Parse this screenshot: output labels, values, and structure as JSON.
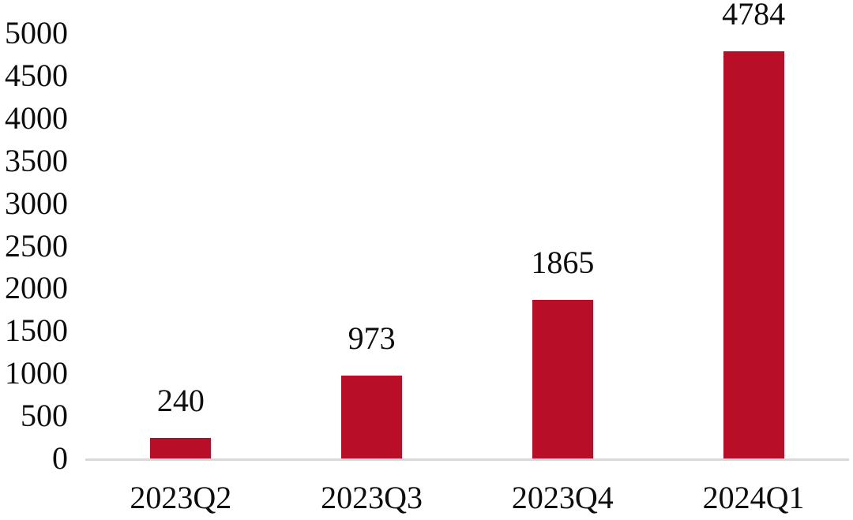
{
  "chart_data": {
    "type": "bar",
    "categories": [
      "2023Q2",
      "2023Q3",
      "2023Q4",
      "2024Q1"
    ],
    "values": [
      240,
      973,
      1865,
      4784
    ],
    "data_labels": [
      "240",
      "973",
      "1865",
      "4784"
    ],
    "title": "",
    "xlabel": "",
    "ylabel": "",
    "ylim": [
      0,
      5000
    ],
    "ytick_step": 500,
    "ytick_labels": [
      "0",
      "500",
      "1000",
      "1500",
      "2000",
      "2500",
      "3000",
      "3500",
      "4000",
      "4500",
      "5000"
    ],
    "grid": false,
    "legend": "none",
    "bar_color": "#B80E28",
    "axis_line_color": "#D9D9D9",
    "text_color": "#0d0d0d",
    "background_color": "#ffffff"
  }
}
